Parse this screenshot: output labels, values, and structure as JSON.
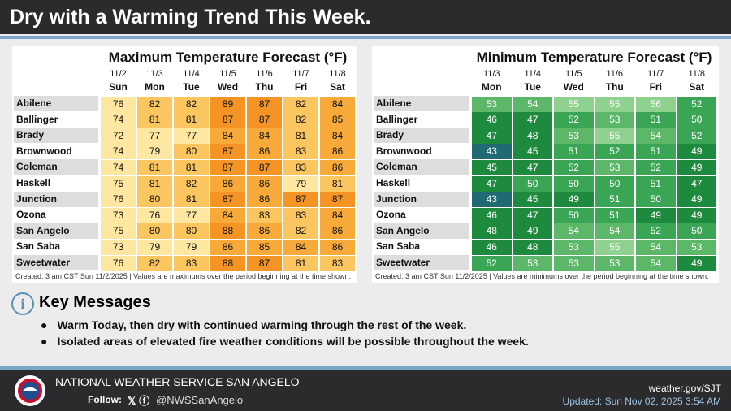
{
  "header": {
    "title": "Dry with a Warming Trend This Week."
  },
  "max_table": {
    "title": "Maximum Temperature Forecast (°F)",
    "dates": [
      "11/2",
      "11/3",
      "11/4",
      "11/5",
      "11/6",
      "11/7",
      "11/8"
    ],
    "days": [
      "Sun",
      "Mon",
      "Tue",
      "Wed",
      "Thu",
      "Fri",
      "Sat"
    ],
    "rows": [
      {
        "city": "Abilene",
        "values": [
          76,
          82,
          82,
          89,
          87,
          82,
          84
        ]
      },
      {
        "city": "Ballinger",
        "values": [
          74,
          81,
          81,
          87,
          87,
          82,
          85
        ]
      },
      {
        "city": "Brady",
        "values": [
          72,
          77,
          77,
          84,
          84,
          81,
          84
        ]
      },
      {
        "city": "Brownwood",
        "values": [
          74,
          79,
          80,
          87,
          86,
          83,
          86
        ]
      },
      {
        "city": "Coleman",
        "values": [
          74,
          81,
          81,
          87,
          87,
          83,
          86
        ]
      },
      {
        "city": "Haskell",
        "values": [
          75,
          81,
          82,
          86,
          86,
          79,
          81
        ]
      },
      {
        "city": "Junction",
        "values": [
          76,
          80,
          81,
          87,
          86,
          87,
          87
        ]
      },
      {
        "city": "Ozona",
        "values": [
          73,
          76,
          77,
          84,
          83,
          83,
          84
        ]
      },
      {
        "city": "San Angelo",
        "values": [
          75,
          80,
          80,
          88,
          86,
          82,
          86
        ]
      },
      {
        "city": "San Saba",
        "values": [
          73,
          79,
          79,
          86,
          85,
          84,
          86
        ]
      },
      {
        "city": "Sweetwater",
        "values": [
          76,
          82,
          83,
          88,
          87,
          81,
          83
        ]
      }
    ],
    "note": "Created: 3 am CST Sun 11/2/2025  |  Values are maximums over the period beginning at the time shown."
  },
  "min_table": {
    "title": "Minimum Temperature Forecast (°F)",
    "dates": [
      "11/3",
      "11/4",
      "11/5",
      "11/6",
      "11/7",
      "11/8"
    ],
    "days": [
      "Mon",
      "Tue",
      "Wed",
      "Thu",
      "Fri",
      "Sat"
    ],
    "rows": [
      {
        "city": "Abilene",
        "values": [
          53,
          54,
          55,
          55,
          56,
          52
        ]
      },
      {
        "city": "Ballinger",
        "values": [
          46,
          47,
          52,
          53,
          51,
          50
        ]
      },
      {
        "city": "Brady",
        "values": [
          47,
          48,
          53,
          55,
          54,
          52
        ]
      },
      {
        "city": "Brownwood",
        "values": [
          43,
          45,
          51,
          52,
          51,
          49
        ]
      },
      {
        "city": "Coleman",
        "values": [
          45,
          47,
          52,
          53,
          52,
          49
        ]
      },
      {
        "city": "Haskell",
        "values": [
          47,
          50,
          50,
          50,
          51,
          47
        ]
      },
      {
        "city": "Junction",
        "values": [
          43,
          45,
          49,
          51,
          50,
          49
        ]
      },
      {
        "city": "Ozona",
        "values": [
          46,
          47,
          50,
          51,
          49,
          49
        ]
      },
      {
        "city": "San Angelo",
        "values": [
          48,
          49,
          54,
          54,
          52,
          50
        ]
      },
      {
        "city": "San Saba",
        "values": [
          46,
          48,
          53,
          55,
          54,
          53
        ]
      },
      {
        "city": "Sweetwater",
        "values": [
          52,
          53,
          53,
          53,
          54,
          49
        ]
      }
    ],
    "note": "Created: 3 am CST Sun 11/2/2025  |  Values are minimums over the period beginning at the time shown."
  },
  "key_messages": {
    "title": "Key Messages",
    "bullets": [
      "Warm Today, then dry with continued warming through the rest of the week.",
      "Isolated areas of elevated fire weather conditions will be possible throughout the week."
    ]
  },
  "footer": {
    "office": "NATIONAL WEATHER SERVICE SAN ANGELO",
    "follow": "Follow:",
    "handle": "@NWSSanAngelo",
    "website": "weather.gov/SJT",
    "updated": "Updated: Sun Nov 02, 2025 3:54 AM"
  }
}
